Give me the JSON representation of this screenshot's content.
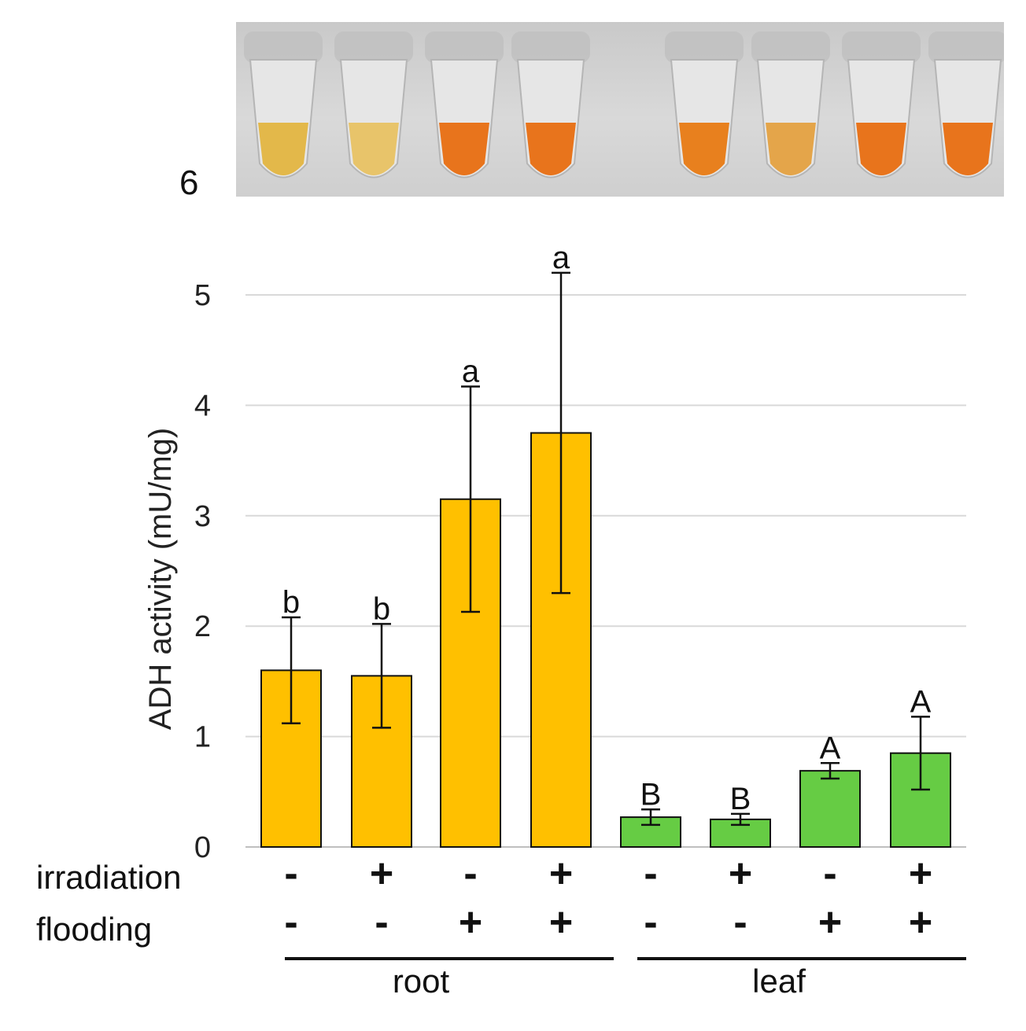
{
  "panel_label": "6",
  "photo": {
    "description_icon": "sample-tubes-photo",
    "tube_colors": [
      "#e3b84a",
      "#e8c46a",
      "#e8741c",
      "#e8741c",
      "#e8801e",
      "#e4a54a",
      "#e8741c",
      "#e8741c"
    ]
  },
  "chart_data": {
    "type": "bar",
    "title": "",
    "xlabel": "",
    "ylabel": "ADH activity (mU/mg)",
    "ylim": [
      0,
      5
    ],
    "yticks": [
      "0",
      "1",
      "2",
      "3",
      "4",
      "5"
    ],
    "grid": true,
    "categories": [
      "root -/-",
      "root +/-",
      "root -/+",
      "root +/+",
      "leaf -/-",
      "leaf +/-",
      "leaf -/+",
      "leaf +/+"
    ],
    "values": [
      1.6,
      1.55,
      3.15,
      3.75,
      0.27,
      0.25,
      0.69,
      0.85
    ],
    "errors": [
      0.48,
      0.47,
      1.02,
      1.45,
      0.07,
      0.05,
      0.07,
      0.33
    ],
    "significance": [
      "b",
      "b",
      "a",
      "a",
      "B",
      "B",
      "A",
      "A"
    ],
    "bar_colors": [
      "#ffc000",
      "#ffc000",
      "#ffc000",
      "#ffc000",
      "#66cc44",
      "#66cc44",
      "#66cc44",
      "#66cc44"
    ],
    "treatments": {
      "irradiation_label": "irradiation",
      "flooding_label": "flooding",
      "irradiation": [
        "-",
        "+",
        "-",
        "+",
        "-",
        "+",
        "-",
        "+"
      ],
      "flooding": [
        "-",
        "-",
        "+",
        "+",
        "-",
        "-",
        "+",
        "+"
      ]
    },
    "groups": [
      "root",
      "leaf"
    ]
  }
}
